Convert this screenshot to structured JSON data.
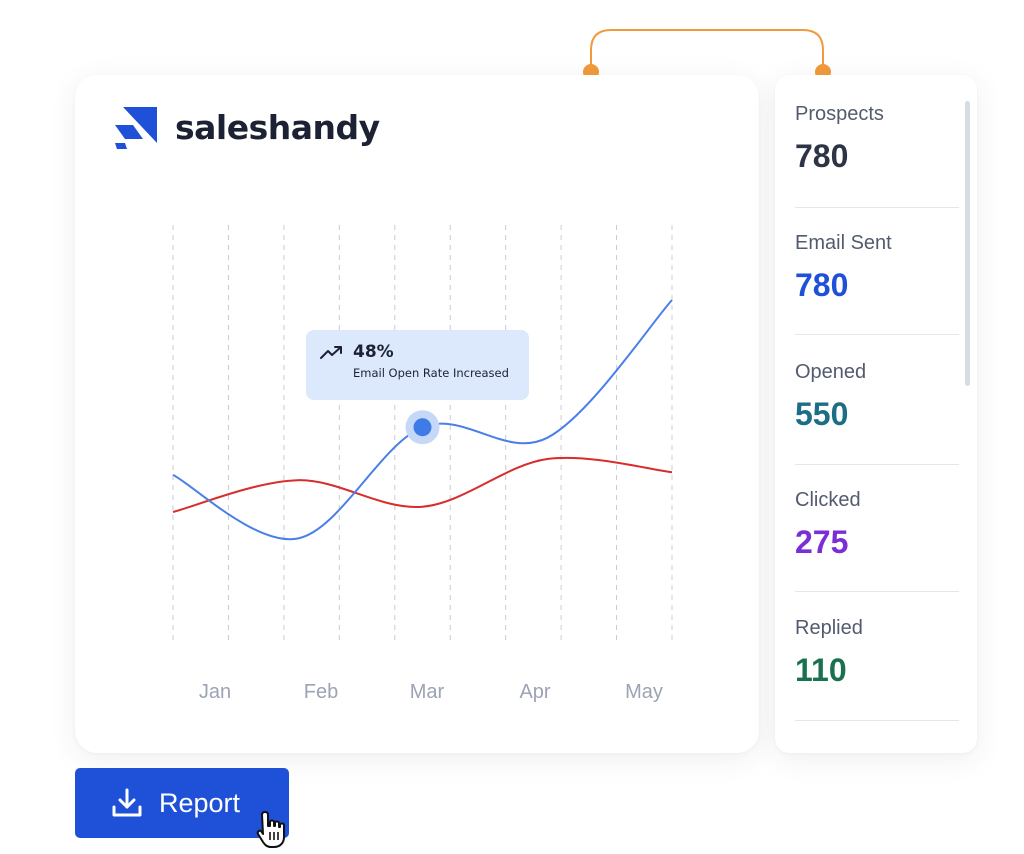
{
  "brand": {
    "name": "saleshandy"
  },
  "chart_data": {
    "type": "line",
    "categories": [
      "Jan",
      "Feb",
      "Mar",
      "Apr",
      "May"
    ],
    "series": [
      {
        "color": "#4a7fe8",
        "values": [
          34,
          10,
          52,
          48,
          100
        ]
      },
      {
        "color": "#d92c2c",
        "values": [
          20,
          32,
          22,
          40,
          35
        ]
      }
    ],
    "highlight": {
      "category": "Mar",
      "value": "48%",
      "label": "Email Open Rate Increased"
    }
  },
  "stats": [
    {
      "label": "Prospects",
      "value": "780",
      "color": "#2c3445"
    },
    {
      "label": "Email Sent",
      "value": "780",
      "color": "#1e50d8"
    },
    {
      "label": "Opened",
      "value": "550",
      "color": "#1c6d86"
    },
    {
      "label": "Clicked",
      "value": "275",
      "color": "#7b2ed6"
    },
    {
      "label": "Replied",
      "value": "110",
      "color": "#1a7150"
    }
  ],
  "report_button": {
    "label": "Report"
  },
  "colors": {
    "accent": "#1e50d8",
    "connector": "#f29a3b",
    "grid": "#c7ccd6"
  }
}
